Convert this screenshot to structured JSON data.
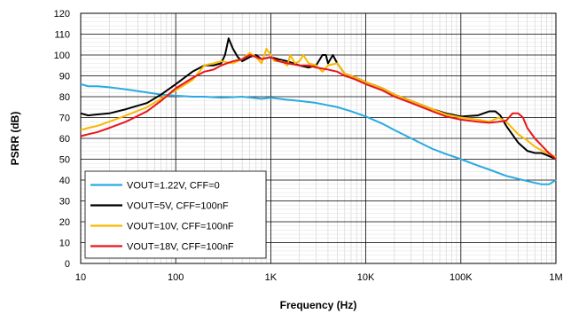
{
  "chart_data": {
    "type": "line",
    "xlabel": "Frequency (Hz)",
    "ylabel": "PSRR (dB)",
    "xscale": "log",
    "xlim": [
      10,
      1000000
    ],
    "ylim": [
      0,
      120
    ],
    "x_ticks": [
      10,
      100,
      1000,
      10000,
      100000,
      1000000
    ],
    "x_tick_labels": [
      "10",
      "100",
      "1K",
      "10K",
      "100K",
      "1M"
    ],
    "y_ticks": [
      0,
      10,
      20,
      30,
      40,
      50,
      60,
      70,
      80,
      90,
      100,
      110,
      120
    ],
    "grid": true,
    "legend_position": "bottom-left",
    "series": [
      {
        "name": "VOUT=1.22V, CFF=0",
        "color": "#29aae1",
        "points": [
          [
            10,
            86
          ],
          [
            12,
            85
          ],
          [
            15,
            85
          ],
          [
            20,
            84.5
          ],
          [
            30,
            83.5
          ],
          [
            50,
            82
          ],
          [
            70,
            81
          ],
          [
            100,
            80.5
          ],
          [
            150,
            80
          ],
          [
            200,
            80
          ],
          [
            300,
            79.5
          ],
          [
            500,
            80
          ],
          [
            800,
            79
          ],
          [
            1000,
            79.5
          ],
          [
            1500,
            78.5
          ],
          [
            2000,
            78
          ],
          [
            3000,
            77
          ],
          [
            5000,
            75
          ],
          [
            7000,
            73
          ],
          [
            10000,
            70.5
          ],
          [
            15000,
            67
          ],
          [
            20000,
            64
          ],
          [
            30000,
            60
          ],
          [
            50000,
            55
          ],
          [
            70000,
            52.5
          ],
          [
            100000,
            50
          ],
          [
            150000,
            47
          ],
          [
            200000,
            45
          ],
          [
            300000,
            42
          ],
          [
            500000,
            39.5
          ],
          [
            700000,
            38
          ],
          [
            850000,
            38
          ],
          [
            1000000,
            40
          ]
        ]
      },
      {
        "name": "VOUT=5V, CFF=100nF",
        "color": "#000000",
        "points": [
          [
            10,
            72
          ],
          [
            12,
            71
          ],
          [
            15,
            71.5
          ],
          [
            20,
            72
          ],
          [
            30,
            74
          ],
          [
            50,
            77
          ],
          [
            70,
            81
          ],
          [
            100,
            86
          ],
          [
            150,
            92
          ],
          [
            200,
            95
          ],
          [
            250,
            95
          ],
          [
            300,
            96
          ],
          [
            330,
            100
          ],
          [
            360,
            108
          ],
          [
            400,
            103
          ],
          [
            450,
            99
          ],
          [
            500,
            97
          ],
          [
            600,
            99
          ],
          [
            700,
            100
          ],
          [
            800,
            98
          ],
          [
            1000,
            99
          ],
          [
            1200,
            98
          ],
          [
            1500,
            97
          ],
          [
            2000,
            95
          ],
          [
            2500,
            94
          ],
          [
            3000,
            95
          ],
          [
            3500,
            100
          ],
          [
            3800,
            100
          ],
          [
            4000,
            96
          ],
          [
            4500,
            100
          ],
          [
            5000,
            96
          ],
          [
            6000,
            91
          ],
          [
            7000,
            90
          ],
          [
            8000,
            89
          ],
          [
            10000,
            87
          ],
          [
            15000,
            84
          ],
          [
            20000,
            81
          ],
          [
            30000,
            78
          ],
          [
            50000,
            74
          ],
          [
            70000,
            72
          ],
          [
            100000,
            70.5
          ],
          [
            150000,
            71
          ],
          [
            200000,
            73
          ],
          [
            230000,
            73
          ],
          [
            260000,
            71
          ],
          [
            300000,
            66
          ],
          [
            400000,
            58
          ],
          [
            500000,
            54
          ],
          [
            600000,
            53
          ],
          [
            700000,
            53
          ],
          [
            800000,
            52
          ],
          [
            1000000,
            50
          ]
        ]
      },
      {
        "name": "VOUT=10V, CFF=100nF",
        "color": "#f9b900",
        "points": [
          [
            10,
            64
          ],
          [
            12,
            65
          ],
          [
            15,
            66
          ],
          [
            20,
            68
          ],
          [
            30,
            71
          ],
          [
            50,
            75
          ],
          [
            70,
            79
          ],
          [
            100,
            83
          ],
          [
            150,
            88
          ],
          [
            200,
            95
          ],
          [
            250,
            96
          ],
          [
            300,
            97
          ],
          [
            400,
            96
          ],
          [
            500,
            98
          ],
          [
            600,
            101
          ],
          [
            700,
            99
          ],
          [
            800,
            96
          ],
          [
            900,
            103
          ],
          [
            1000,
            100
          ],
          [
            1100,
            97
          ],
          [
            1200,
            97
          ],
          [
            1300,
            97
          ],
          [
            1500,
            95
          ],
          [
            1600,
            100
          ],
          [
            1800,
            96
          ],
          [
            2000,
            97
          ],
          [
            2200,
            100
          ],
          [
            2500,
            96
          ],
          [
            3000,
            95
          ],
          [
            3500,
            92
          ],
          [
            4000,
            95
          ],
          [
            5000,
            96
          ],
          [
            6000,
            91
          ],
          [
            7000,
            90
          ],
          [
            8000,
            89
          ],
          [
            10000,
            87
          ],
          [
            15000,
            84
          ],
          [
            20000,
            81
          ],
          [
            30000,
            78
          ],
          [
            50000,
            74
          ],
          [
            70000,
            71.5
          ],
          [
            100000,
            70
          ],
          [
            150000,
            69
          ],
          [
            200000,
            68
          ],
          [
            250000,
            70
          ],
          [
            300000,
            68
          ],
          [
            400000,
            62
          ],
          [
            500000,
            59
          ],
          [
            600000,
            56
          ],
          [
            800000,
            53
          ],
          [
            1000000,
            51
          ]
        ]
      },
      {
        "name": "VOUT=18V, CFF=100nF",
        "color": "#e8161d",
        "points": [
          [
            10,
            61
          ],
          [
            12,
            62
          ],
          [
            15,
            63
          ],
          [
            20,
            65
          ],
          [
            30,
            68
          ],
          [
            50,
            73
          ],
          [
            70,
            78
          ],
          [
            100,
            84
          ],
          [
            150,
            89
          ],
          [
            200,
            92
          ],
          [
            250,
            93
          ],
          [
            300,
            95
          ],
          [
            400,
            97
          ],
          [
            500,
            98
          ],
          [
            600,
            100
          ],
          [
            700,
            99
          ],
          [
            800,
            98
          ],
          [
            1000,
            99
          ],
          [
            1200,
            97
          ],
          [
            1500,
            96
          ],
          [
            2000,
            95
          ],
          [
            2500,
            95
          ],
          [
            3000,
            94
          ],
          [
            4000,
            93
          ],
          [
            5000,
            92
          ],
          [
            6000,
            90
          ],
          [
            7000,
            89
          ],
          [
            8000,
            88
          ],
          [
            10000,
            86
          ],
          [
            15000,
            83
          ],
          [
            20000,
            80
          ],
          [
            30000,
            77
          ],
          [
            50000,
            73
          ],
          [
            70000,
            70.5
          ],
          [
            100000,
            69
          ],
          [
            150000,
            68
          ],
          [
            200000,
            67.5
          ],
          [
            250000,
            68
          ],
          [
            300000,
            68.5
          ],
          [
            350000,
            72
          ],
          [
            400000,
            72
          ],
          [
            450000,
            70
          ],
          [
            500000,
            65
          ],
          [
            600000,
            60
          ],
          [
            800000,
            54
          ],
          [
            1000000,
            50
          ]
        ]
      }
    ]
  }
}
